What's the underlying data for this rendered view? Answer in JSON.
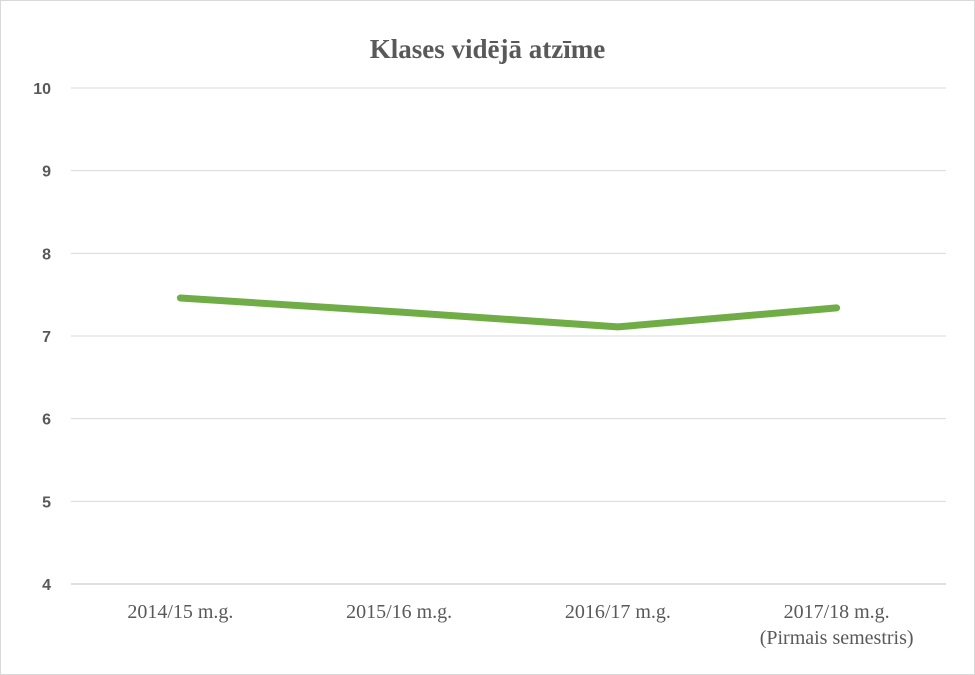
{
  "chart_data": {
    "type": "line",
    "title": "Klases vidējā atzīme",
    "xlabel": "",
    "ylabel": "",
    "categories": [
      [
        "2014/15 m.g."
      ],
      [
        "2015/16 m.g."
      ],
      [
        "2016/17 m.g."
      ],
      [
        "2017/18 m.g.",
        "(Pirmais semestris)"
      ]
    ],
    "series": [
      {
        "values": [
          7.46,
          7.29,
          7.11,
          7.34
        ],
        "color": "#70ad47"
      }
    ],
    "ylim": [
      4,
      10
    ],
    "yticks": [
      4,
      5,
      6,
      7,
      8,
      9,
      10
    ],
    "grid": true,
    "legend": "none"
  }
}
